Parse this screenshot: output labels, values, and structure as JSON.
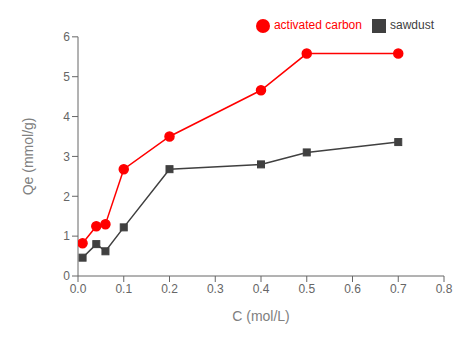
{
  "chart_data": {
    "type": "line",
    "xlabel": "C (mol/L)",
    "ylabel": "Qe (mmol/g)",
    "x": [
      0.01,
      0.04,
      0.06,
      0.1,
      0.2,
      0.4,
      0.5,
      0.7
    ],
    "series": [
      {
        "name": "sawdust",
        "color": "#404040",
        "marker": "square",
        "values": [
          0.46,
          0.8,
          0.62,
          1.22,
          2.68,
          2.8,
          3.1,
          3.36
        ]
      },
      {
        "name": "activated carbon",
        "color": "#ff0000",
        "marker": "circle",
        "values": [
          0.82,
          1.25,
          1.3,
          2.68,
          3.5,
          4.66,
          5.58,
          5.58
        ]
      }
    ],
    "xlim": [
      0,
      0.8
    ],
    "ylim": [
      0,
      6
    ],
    "xticks": [
      {
        "value": 0,
        "label": "0.0"
      },
      0.1,
      0.2,
      0.3,
      0.4,
      0.5,
      0.6,
      0.7,
      0.8
    ],
    "yticks": [
      0,
      1,
      2,
      3,
      4,
      5,
      6
    ],
    "legend": "upper right",
    "grid": false
  }
}
